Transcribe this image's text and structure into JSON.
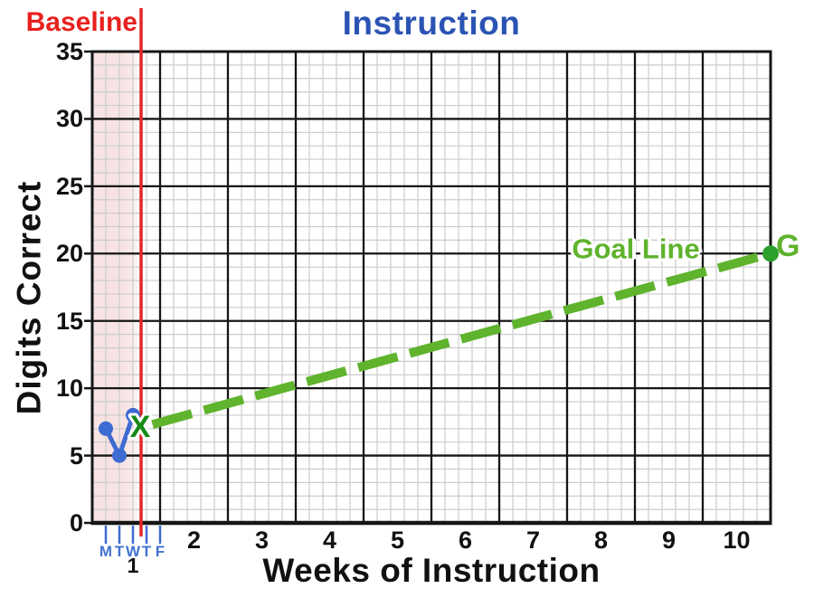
{
  "page": {
    "background": "#ffffff"
  },
  "colors": {
    "title_blue": "#2b53b4",
    "axis_text": "#111111",
    "data_blue": "#3e6bd2",
    "day_label_blue": "#4472d0",
    "red_line": "#e32726",
    "baseline_red": "#e8201d",
    "goal_green": "#5fb32d",
    "x_marker_green": "#178a17",
    "goal_dot_green": "#2da02d",
    "grid_minor": "#cccccc",
    "grid_major": "#161616",
    "baseline_fill": "#f7e3e3"
  },
  "chart_data": {
    "type": "line",
    "title": "Instruction",
    "x_axis": {
      "label": "Weeks of Instruction",
      "min": 0,
      "max": 10,
      "unit": "weeks",
      "minor_step_weeks": 0.2,
      "week_number_labels": [
        2,
        3,
        4,
        5,
        6,
        7,
        8,
        9,
        10
      ],
      "week1_label": "1",
      "day_tick_labels": [
        "M",
        "T",
        "W",
        "T",
        "F"
      ]
    },
    "y_axis": {
      "label": "Digits Correct",
      "min": 0,
      "max": 35,
      "major_step": 5,
      "minor_step": 1,
      "tick_values": [
        0,
        5,
        10,
        15,
        20,
        25,
        30,
        35
      ]
    },
    "grid": {
      "minor": true,
      "major": true
    },
    "legend": "none",
    "baseline_phase": {
      "label": "Baseline",
      "region_start_week": 0,
      "region_end_week": 0.72
    },
    "series": [
      {
        "name": "baseline-scores",
        "type": "line-with-markers",
        "marker": "circle",
        "points": [
          {
            "day": "M",
            "week_x": 0.2,
            "value": 7
          },
          {
            "day": "T",
            "week_x": 0.4,
            "value": 5
          },
          {
            "day": "W",
            "week_x": 0.6,
            "value": 8
          }
        ]
      },
      {
        "name": "goal-line",
        "type": "dashed-line",
        "label": "Goal Line",
        "points": [
          {
            "week_x": 0.72,
            "value": 7,
            "marker": "X"
          },
          {
            "week_x": 10,
            "value": 20,
            "marker": "circle",
            "label": "G"
          }
        ]
      }
    ]
  }
}
